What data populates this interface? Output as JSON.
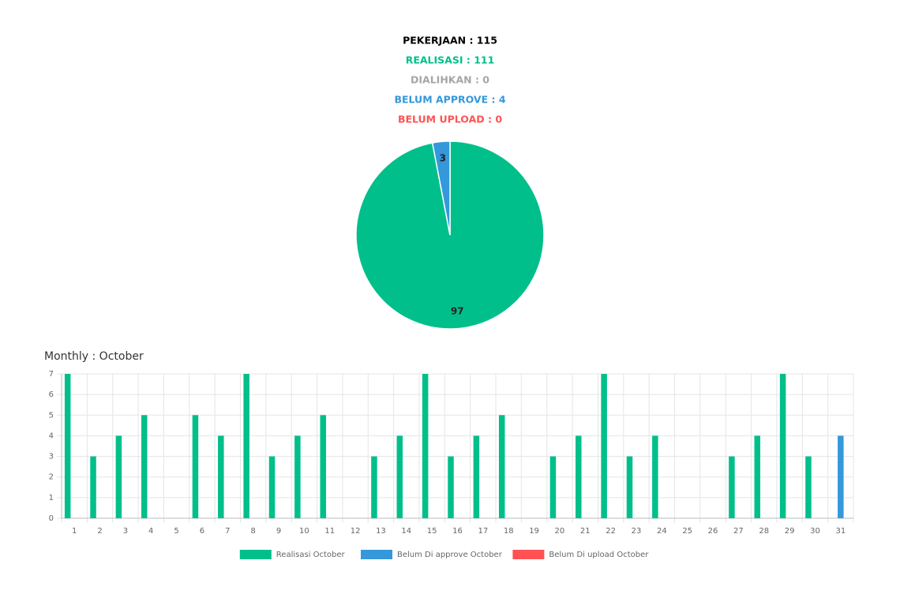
{
  "summary": [
    {
      "text": "PEKERJAAN : 115",
      "color": "#000000"
    },
    {
      "text": "REALISASI : 111",
      "color": "#00bf8a"
    },
    {
      "text": "DIALIHKAN : 0",
      "color": "#a6a6a6"
    },
    {
      "text": "BELUM APPROVE : 4",
      "color": "#3498db"
    },
    {
      "text": "BELUM UPLOAD : 0",
      "color": "#ff5252"
    }
  ],
  "chart_data": [
    {
      "type": "pie",
      "values": [
        97,
        3
      ],
      "colors": [
        "#00bf8a",
        "#3498db"
      ]
    },
    {
      "type": "bar",
      "title": "Monthly : October",
      "categories": [
        "1",
        "2",
        "3",
        "4",
        "5",
        "6",
        "7",
        "8",
        "9",
        "10",
        "11",
        "12",
        "13",
        "14",
        "15",
        "16",
        "17",
        "18",
        "19",
        "20",
        "21",
        "22",
        "23",
        "24",
        "25",
        "26",
        "27",
        "28",
        "29",
        "30",
        "31"
      ],
      "series": [
        {
          "name": "Realisasi October",
          "color": "#00bf8a",
          "values": [
            7,
            3,
            4,
            5,
            0,
            5,
            4,
            7,
            3,
            4,
            5,
            0,
            3,
            4,
            7,
            3,
            4,
            5,
            0,
            3,
            4,
            7,
            3,
            4,
            0,
            0,
            3,
            4,
            7,
            3,
            0
          ]
        },
        {
          "name": "Belum Di approve October",
          "color": "#3498db",
          "values": [
            0,
            0,
            0,
            0,
            0,
            0,
            0,
            0,
            0,
            0,
            0,
            0,
            0,
            0,
            0,
            0,
            0,
            0,
            0,
            0,
            0,
            0,
            0,
            0,
            0,
            0,
            0,
            0,
            0,
            0,
            4
          ]
        },
        {
          "name": "Belum Di upload October",
          "color": "#ff5252",
          "values": [
            0,
            0,
            0,
            0,
            0,
            0,
            0,
            0,
            0,
            0,
            0,
            0,
            0,
            0,
            0,
            0,
            0,
            0,
            0,
            0,
            0,
            0,
            0,
            0,
            0,
            0,
            0,
            0,
            0,
            0,
            0
          ]
        }
      ],
      "ylim": [
        0,
        7
      ],
      "yticks": [
        0,
        1,
        2,
        3,
        4,
        5,
        6,
        7
      ],
      "grid": true,
      "legend": "bottom"
    }
  ]
}
